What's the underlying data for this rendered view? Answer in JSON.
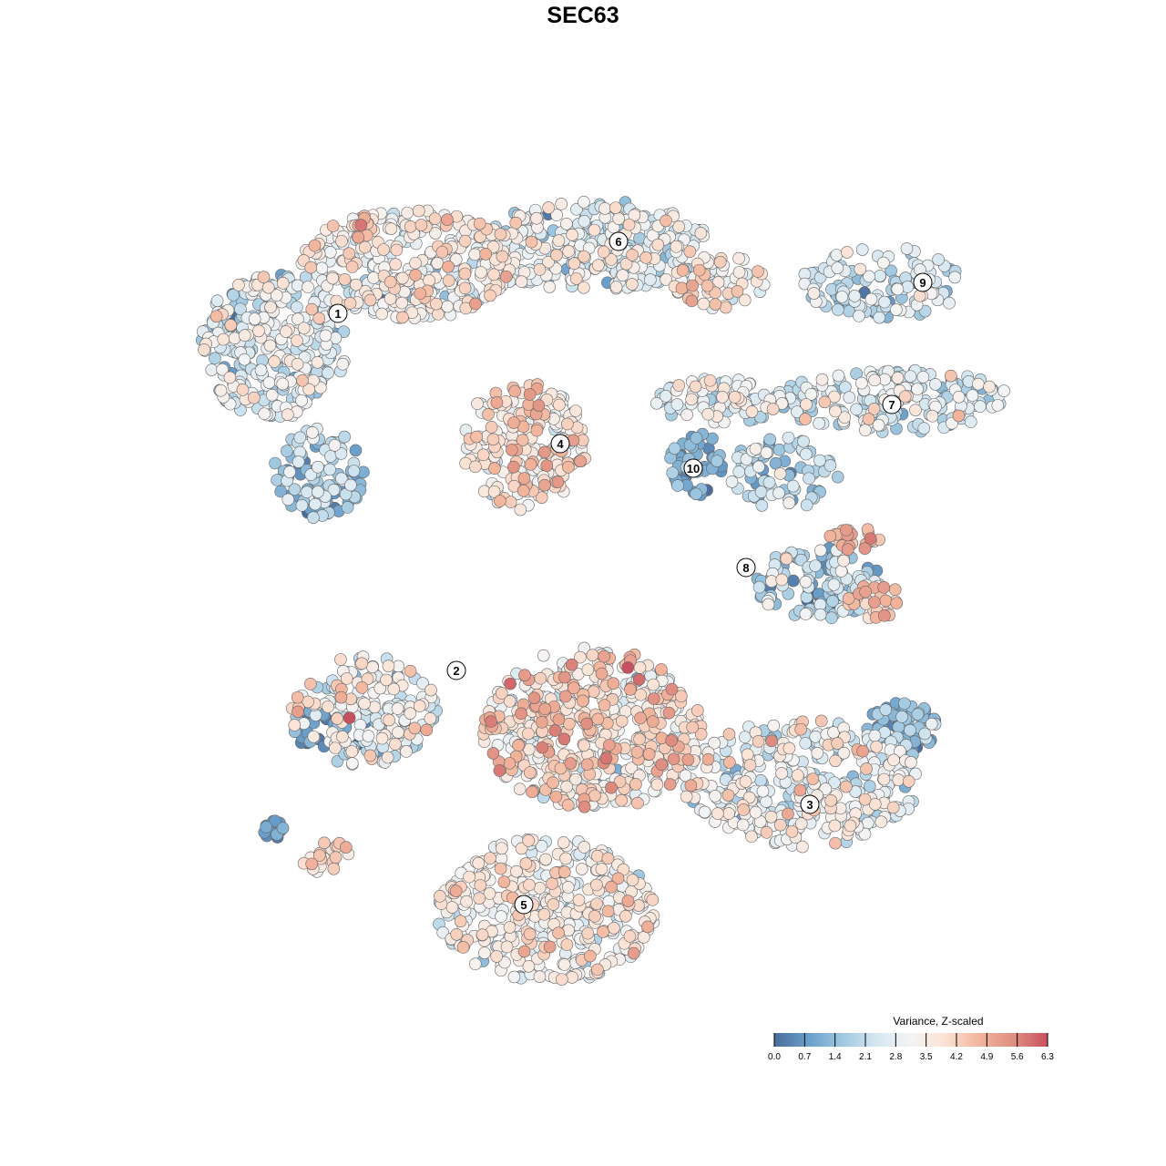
{
  "chart_data": {
    "type": "scatter",
    "title": "SEC63",
    "xlabel": "",
    "ylabel": "",
    "xlim": [
      -44,
      49
    ],
    "ylim": [
      -46,
      46
    ],
    "grid": false,
    "note": "tSNE embedding; points summarized as clusters (center, spread, count, mean/sd of value)",
    "clusters": [
      {
        "id": "1a",
        "cx": -34,
        "cy": 26,
        "rx": 8,
        "ry": 8,
        "n": 300,
        "mean": 2.6,
        "sd": 0.8
      },
      {
        "id": "1b",
        "cx": -19,
        "cy": 35,
        "rx": 12,
        "ry": 6,
        "n": 350,
        "mean": 3.2,
        "sd": 0.8
      },
      {
        "id": "1c",
        "cx": -29,
        "cy": 12,
        "rx": 5,
        "ry": 5,
        "n": 100,
        "mean": 1.8,
        "sd": 0.8
      },
      {
        "id": "6a",
        "cx": 1,
        "cy": 37,
        "rx": 13,
        "ry": 5,
        "n": 300,
        "mean": 2.7,
        "sd": 0.8
      },
      {
        "id": "6b",
        "cx": 15,
        "cy": 33,
        "rx": 5,
        "ry": 3,
        "n": 60,
        "mean": 3.6,
        "sd": 0.7
      },
      {
        "id": "9",
        "cx": 33,
        "cy": 33,
        "rx": 9,
        "ry": 4,
        "n": 120,
        "mean": 2.2,
        "sd": 0.7
      },
      {
        "id": "7a",
        "cx": 34,
        "cy": 20,
        "rx": 13,
        "ry": 3.5,
        "n": 200,
        "mean": 2.4,
        "sd": 0.8
      },
      {
        "id": "7b",
        "cx": 15,
        "cy": 20,
        "rx": 7,
        "ry": 2.5,
        "n": 80,
        "mean": 2.9,
        "sd": 0.8
      },
      {
        "id": "4",
        "cx": -6.5,
        "cy": 15,
        "rx": 7,
        "ry": 7,
        "n": 220,
        "mean": 3.7,
        "sd": 0.8
      },
      {
        "id": "10",
        "cx": 12.5,
        "cy": 13,
        "rx": 3,
        "ry": 3.5,
        "n": 50,
        "mean": 1.0,
        "sd": 0.5
      },
      {
        "id": "8a",
        "cx": 22,
        "cy": 12,
        "rx": 6,
        "ry": 4,
        "n": 80,
        "mean": 2.0,
        "sd": 0.8
      },
      {
        "id": "8b",
        "cx": 26,
        "cy": 0,
        "rx": 7,
        "ry": 4,
        "n": 130,
        "mean": 1.9,
        "sd": 0.9
      },
      {
        "id": "8c",
        "cx": 30,
        "cy": 5,
        "rx": 3,
        "ry": 1.5,
        "n": 25,
        "mean": 4.7,
        "sd": 0.4
      },
      {
        "id": "8d",
        "cx": 32,
        "cy": -2,
        "rx": 3,
        "ry": 2,
        "n": 25,
        "mean": 4.6,
        "sd": 0.5
      },
      {
        "id": "2a",
        "cx": -24,
        "cy": -14,
        "rx": 8,
        "ry": 6,
        "n": 180,
        "mean": 2.9,
        "sd": 1.0
      },
      {
        "id": "2b",
        "cx": -29,
        "cy": -16,
        "rx": 3,
        "ry": 2,
        "n": 30,
        "mean": 0.6,
        "sd": 0.4
      },
      {
        "id": "c",
        "cx": 1,
        "cy": -16,
        "rx": 12,
        "ry": 9,
        "n": 500,
        "mean": 3.8,
        "sd": 0.9
      },
      {
        "id": "3a",
        "cx": 24,
        "cy": -22,
        "rx": 13,
        "ry": 7,
        "n": 350,
        "mean": 2.9,
        "sd": 0.8
      },
      {
        "id": "3b",
        "cx": 35,
        "cy": -16,
        "rx": 4,
        "ry": 3,
        "n": 70,
        "mean": 1.2,
        "sd": 0.6
      },
      {
        "id": "5",
        "cx": -4,
        "cy": -36,
        "rx": 12,
        "ry": 8,
        "n": 400,
        "mean": 3.3,
        "sd": 0.7
      },
      {
        "id": "s1",
        "cx": -28,
        "cy": -30,
        "rx": 3,
        "ry": 2,
        "n": 20,
        "mean": 3.8,
        "sd": 0.5
      },
      {
        "id": "s2",
        "cx": -34,
        "cy": -27,
        "rx": 1.2,
        "ry": 1,
        "n": 15,
        "mean": 0.5,
        "sd": 0.3
      }
    ],
    "cluster_labels": [
      {
        "label": "1",
        "x": -26.9,
        "y": 29.6
      },
      {
        "label": "6",
        "x": 3.9,
        "y": 37.5
      },
      {
        "label": "9",
        "x": 37.3,
        "y": 33.0
      },
      {
        "label": "7",
        "x": 33.9,
        "y": 19.6
      },
      {
        "label": "4",
        "x": -2.5,
        "y": 15.3
      },
      {
        "label": "10",
        "x": 12.1,
        "y": 12.6
      },
      {
        "label": "8",
        "x": 17.9,
        "y": 1.7
      },
      {
        "label": "2",
        "x": -13.9,
        "y": -9.6
      },
      {
        "label": "3",
        "x": 24.9,
        "y": -24.3
      },
      {
        "label": "5",
        "x": -6.5,
        "y": -35.3
      }
    ],
    "legend": {
      "title": "Variance, Z-scaled",
      "placement": "bottom-right",
      "ticks": [
        "0.0",
        "0.7",
        "1.4",
        "2.1",
        "2.8",
        "3.5",
        "4.2",
        "4.9",
        "5.6",
        "6.3"
      ],
      "range": [
        0,
        6.3
      ],
      "colors": [
        "#4a6d9c",
        "#6a9fcb",
        "#9fc8e0",
        "#d5e7f1",
        "#f4f4f4",
        "#fbe2d4",
        "#f2b59c",
        "#e08f82",
        "#c8505e"
      ]
    }
  }
}
